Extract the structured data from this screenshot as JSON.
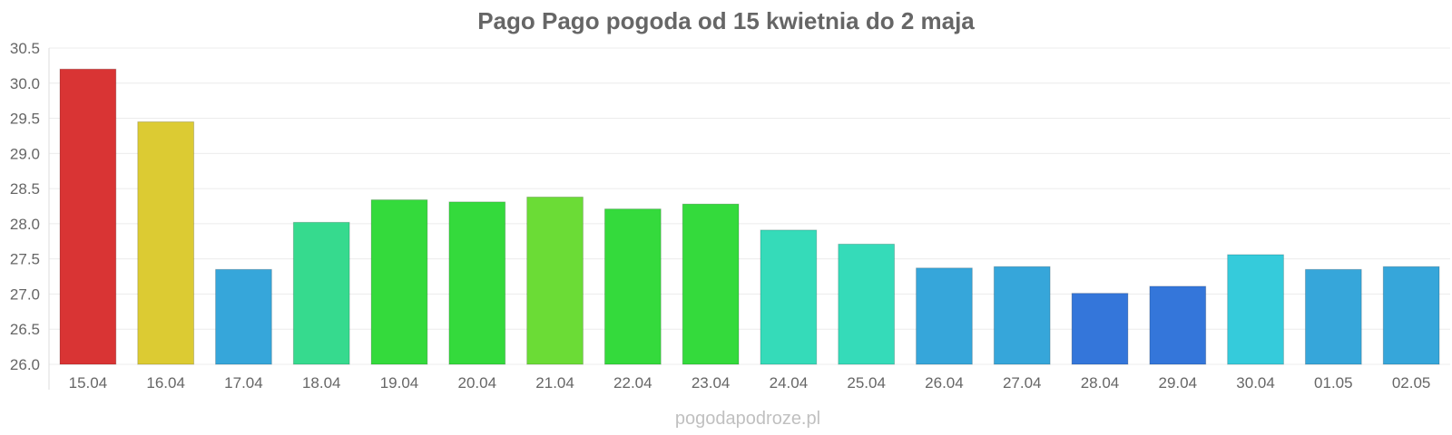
{
  "chart_data": {
    "type": "bar",
    "title": "Pago Pago pogoda od 15 kwietnia do 2 maja",
    "xlabel": "",
    "ylabel": "",
    "ylim": [
      26.0,
      30.5
    ],
    "y_ticks": [
      "26.0",
      "26.5",
      "27.0",
      "27.5",
      "28.0",
      "28.5",
      "29.0",
      "29.5",
      "30.0",
      "30.5"
    ],
    "grid": true,
    "legend": "none",
    "categories": [
      "15.04",
      "16.04",
      "17.04",
      "18.04",
      "19.04",
      "20.04",
      "21.04",
      "22.04",
      "23.04",
      "24.04",
      "25.04",
      "26.04",
      "27.04",
      "28.04",
      "29.04",
      "30.04",
      "01.05",
      "02.05"
    ],
    "values": [
      30.2,
      29.45,
      27.35,
      28.02,
      28.34,
      28.31,
      28.38,
      28.21,
      28.28,
      27.91,
      27.71,
      27.37,
      27.39,
      27.01,
      27.11,
      27.56,
      27.35,
      27.39
    ],
    "colors": [
      "#d93434",
      "#dccb33",
      "#36a6da",
      "#36da8e",
      "#34da3c",
      "#34da3c",
      "#6bdc36",
      "#34da3c",
      "#34da3c",
      "#35dbb9",
      "#35dbb9",
      "#36a6da",
      "#36a6da",
      "#3476da",
      "#3476da",
      "#35cbdb",
      "#36a6da",
      "#36a6da"
    ]
  },
  "watermark": "pogodapodroze.pl"
}
